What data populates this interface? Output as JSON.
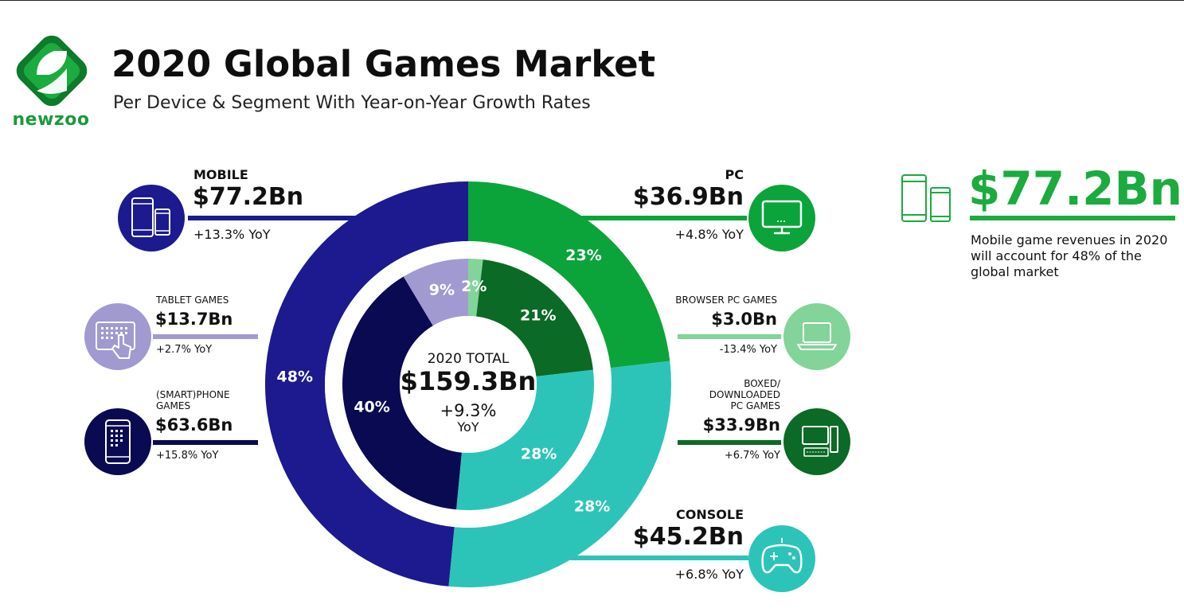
{
  "brand": {
    "name": "newzoo",
    "colors": {
      "green": "#1bab3f",
      "dark_green": "#0e7a2b"
    }
  },
  "header": {
    "title": "2020 Global Games Market",
    "subtitle": "Per Device & Segment With Year-on-Year Growth Rates"
  },
  "chart_data": {
    "type": "pie",
    "style": "two-ring donut",
    "center": {
      "title": "2020 TOTAL",
      "value": "$159.3Bn",
      "yoy": "+9.3%",
      "yoy_unit": "YoY"
    },
    "outer_ring": [
      {
        "name": "MOBILE",
        "value": 77.2,
        "value_label": "$77.2Bn",
        "yoy": "+13.3% YoY",
        "share": 48,
        "share_label": "48%",
        "color": "#1c1a8e",
        "icon": "mobile-devices-icon"
      },
      {
        "name": "PC",
        "value": 36.9,
        "value_label": "$36.9Bn",
        "yoy": "+4.8% YoY",
        "share": 23,
        "share_label": "23%",
        "color": "#0aa43a",
        "icon": "monitor-icon"
      },
      {
        "name": "CONSOLE",
        "value": 45.2,
        "value_label": "$45.2Bn",
        "yoy": "+6.8% YoY",
        "share": 28,
        "share_label": "28%",
        "color": "#2cc4b8",
        "icon": "gamepad-icon"
      }
    ],
    "inner_ring": [
      {
        "name": "(SMART)PHONE GAMES",
        "name_lines": [
          "(SMART)PHONE",
          "GAMES"
        ],
        "value": 63.6,
        "value_label": "$63.6Bn",
        "yoy": "+15.8% YoY",
        "share": 40,
        "share_label": "40%",
        "color": "#0a0a52",
        "icon": "smartphone-icon"
      },
      {
        "name": "TABLET GAMES",
        "name_lines": [
          "TABLET GAMES"
        ],
        "value": 13.7,
        "value_label": "$13.7Bn",
        "yoy": "+2.7% YoY",
        "share": 9,
        "share_label": "9%",
        "color": "#a19ad1",
        "icon": "tablet-touch-icon"
      },
      {
        "name": "BROWSER PC GAMES",
        "name_lines": [
          "BROWSER PC GAMES"
        ],
        "value": 3.0,
        "value_label": "$3.0Bn",
        "yoy": "-13.4% YoY",
        "share": 2,
        "share_label": "2%",
        "color": "#82d49a",
        "icon": "laptop-icon"
      },
      {
        "name": "BOXED/DOWNLOADED PC GAMES",
        "name_lines": [
          "BOXED/",
          "DOWNLOADED",
          "PC GAMES"
        ],
        "value": 33.9,
        "value_label": "$33.9Bn",
        "yoy": "+6.7% YoY",
        "share": 21,
        "share_label": "21%",
        "color": "#0b6a25",
        "icon": "desktop-pc-icon"
      },
      {
        "name": "CONSOLE",
        "value": 45.2,
        "share": 28,
        "share_label": "28%",
        "color": "#2cc4b8"
      }
    ]
  },
  "callout": {
    "value": "$77.2Bn",
    "text": "Mobile game revenues in 2020 will account for 48% of the global market",
    "icon": "mobile-devices-icon"
  }
}
